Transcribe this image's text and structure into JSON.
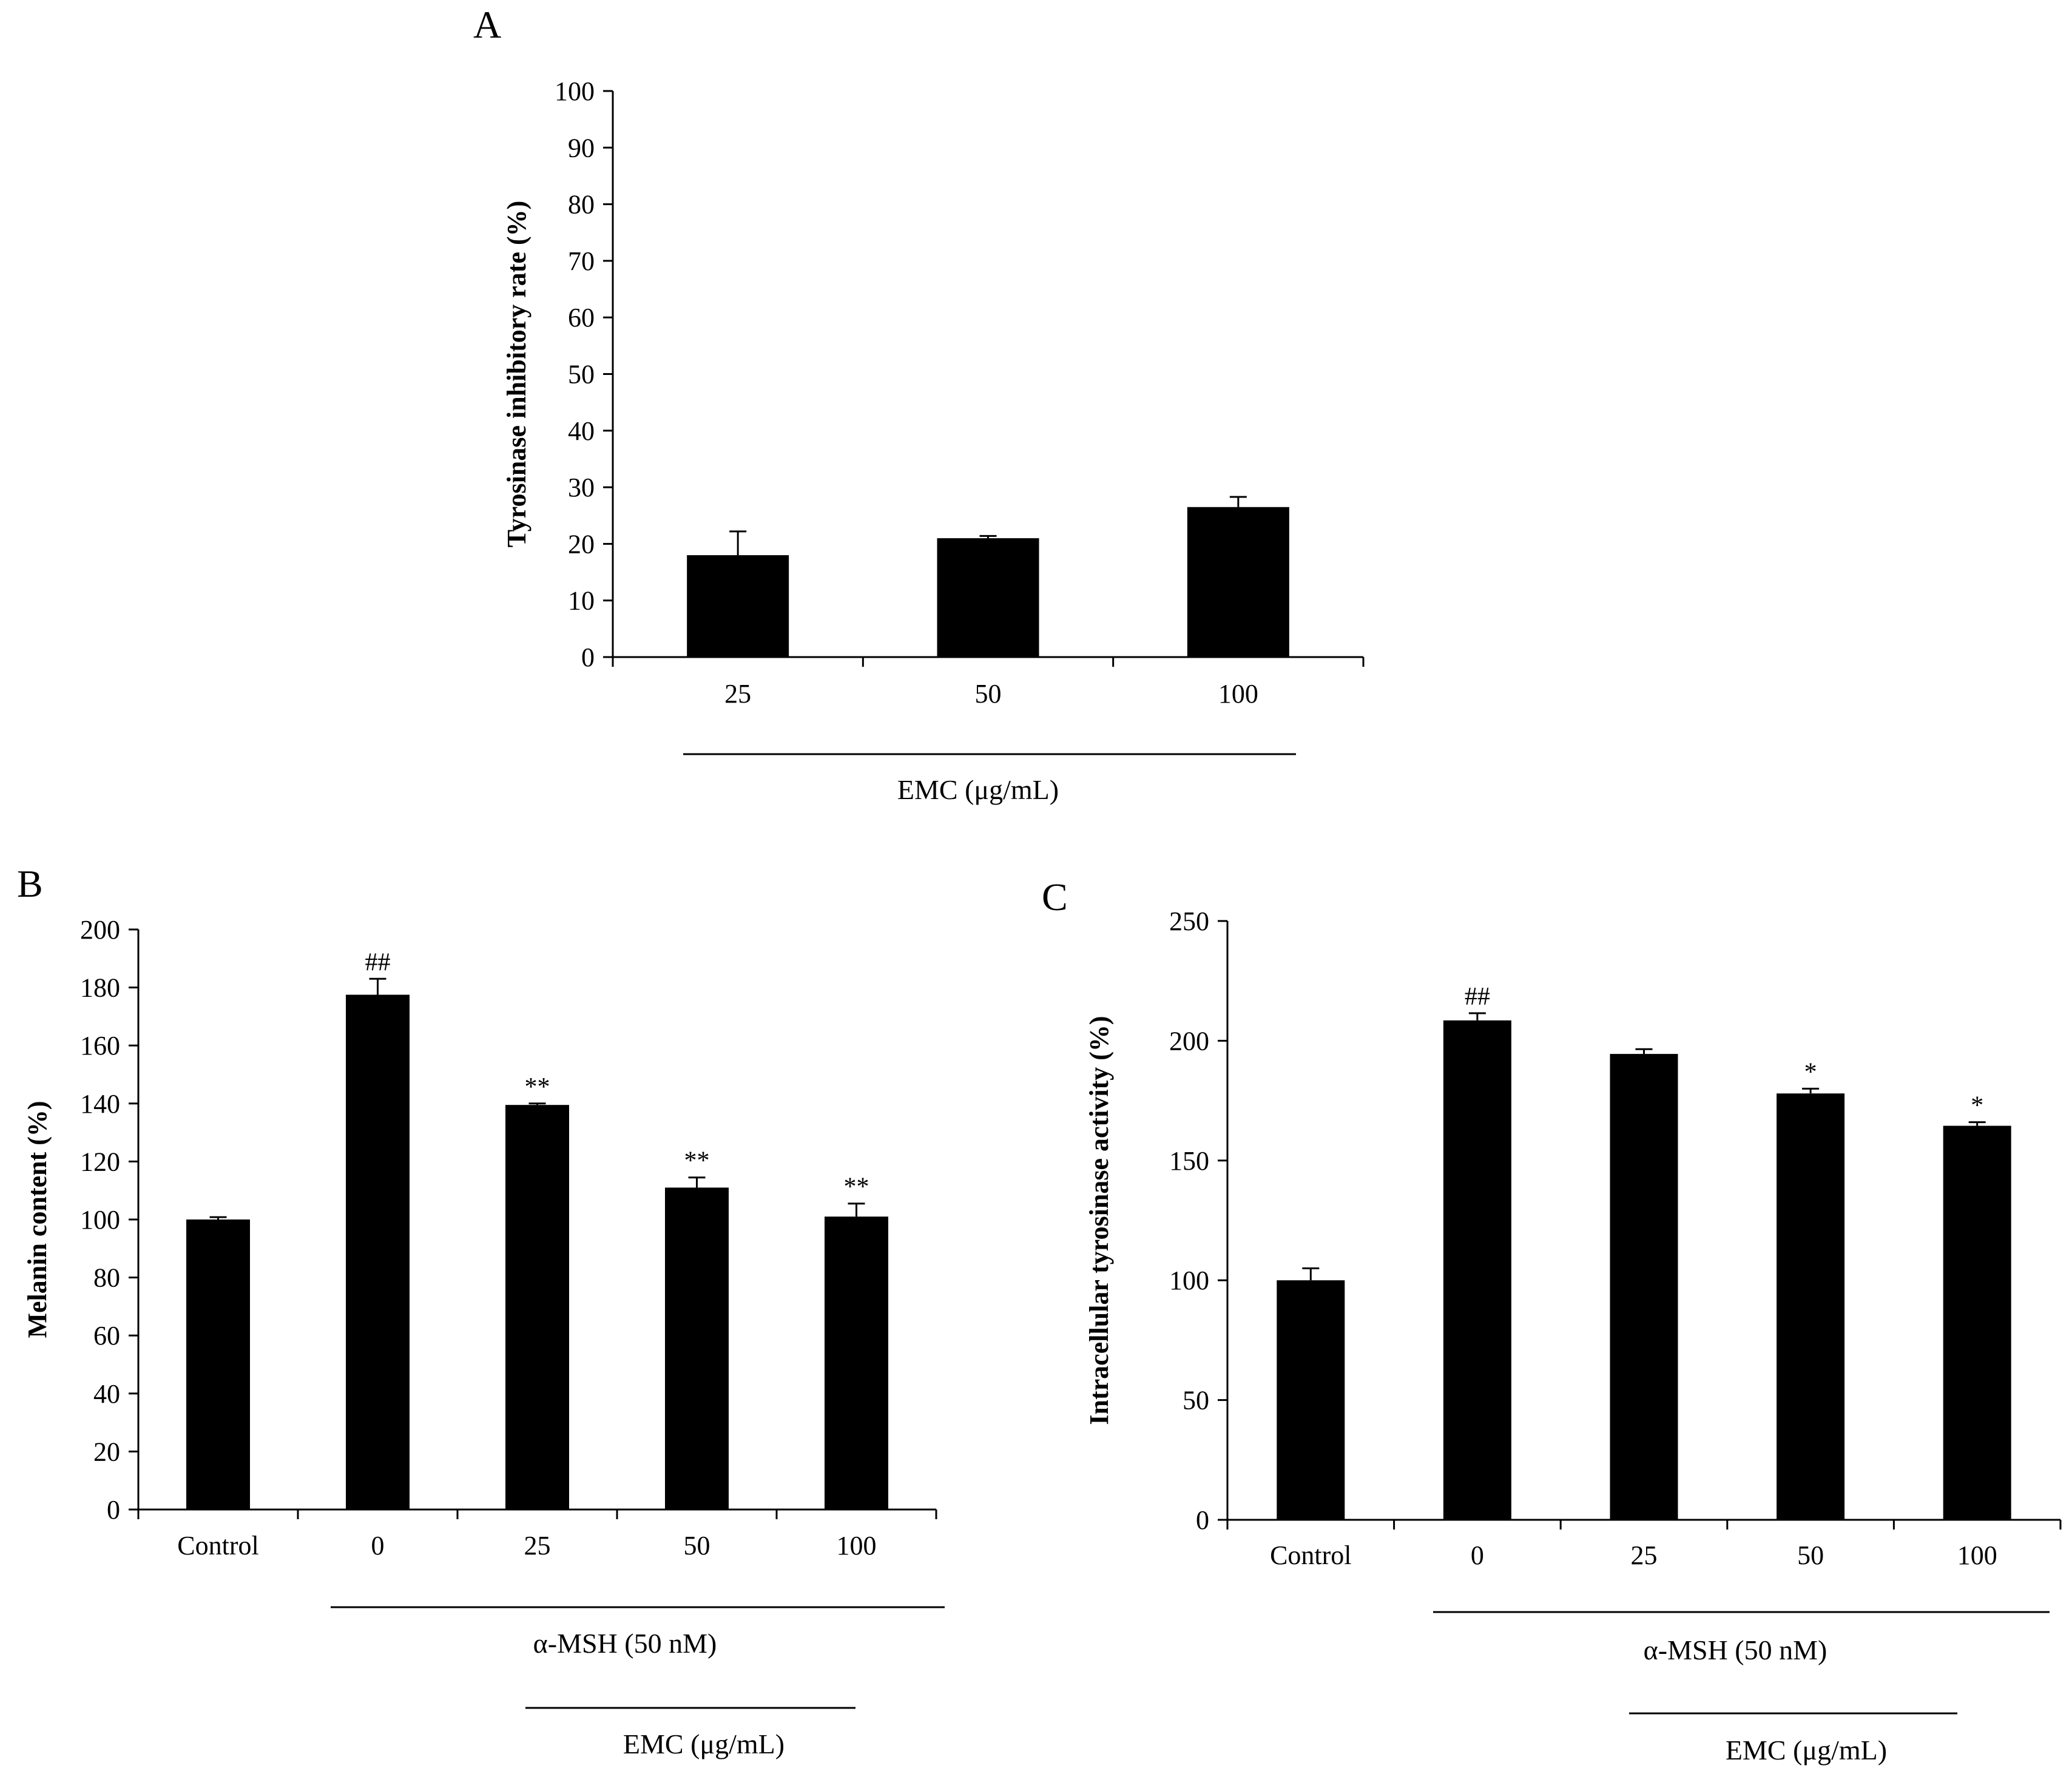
{
  "chart_data": [
    {
      "panel": "A",
      "type": "bar",
      "ylabel": "Tyrosinase inhibitory rate (%)",
      "ylim": [
        0,
        100
      ],
      "yticks": [
        0,
        10,
        20,
        30,
        40,
        50,
        60,
        70,
        80,
        90,
        100
      ],
      "categories": [
        "25",
        "50",
        "100"
      ],
      "values": [
        18,
        21,
        26.5
      ],
      "errors": [
        4.2,
        0.4,
        1.8
      ],
      "annotations": [
        "",
        "",
        ""
      ],
      "groups": [
        "EMC (μg/mL)"
      ]
    },
    {
      "panel": "B",
      "type": "bar",
      "ylabel": "Melanin content (%)",
      "ylim": [
        0,
        200
      ],
      "yticks": [
        0,
        20,
        40,
        60,
        80,
        100,
        120,
        140,
        160,
        180,
        200
      ],
      "categories": [
        "Control",
        "0",
        "25",
        "50",
        "100"
      ],
      "values": [
        100,
        177.5,
        139.5,
        111,
        101
      ],
      "errors": [
        0.8,
        5.5,
        0.5,
        3.5,
        4.5
      ],
      "annotations": [
        "",
        "##",
        "**",
        "**",
        "**"
      ],
      "groups": [
        "α-MSH (50 nM)",
        "EMC (μg/mL)"
      ]
    },
    {
      "panel": "C",
      "type": "bar",
      "ylabel": "Intracellular tyrosinase activity (%)",
      "ylim": [
        0,
        250
      ],
      "yticks": [
        0,
        50,
        100,
        150,
        200,
        250
      ],
      "categories": [
        "Control",
        "0",
        "25",
        "50",
        "100"
      ],
      "values": [
        100,
        208.5,
        194.5,
        178,
        164.5
      ],
      "errors": [
        5,
        3,
        2,
        2,
        1.5
      ],
      "annotations": [
        "",
        "##",
        "",
        "*",
        "*"
      ],
      "groups": [
        "α-MSH (50 nM)",
        "EMC (μg/mL)"
      ]
    }
  ]
}
